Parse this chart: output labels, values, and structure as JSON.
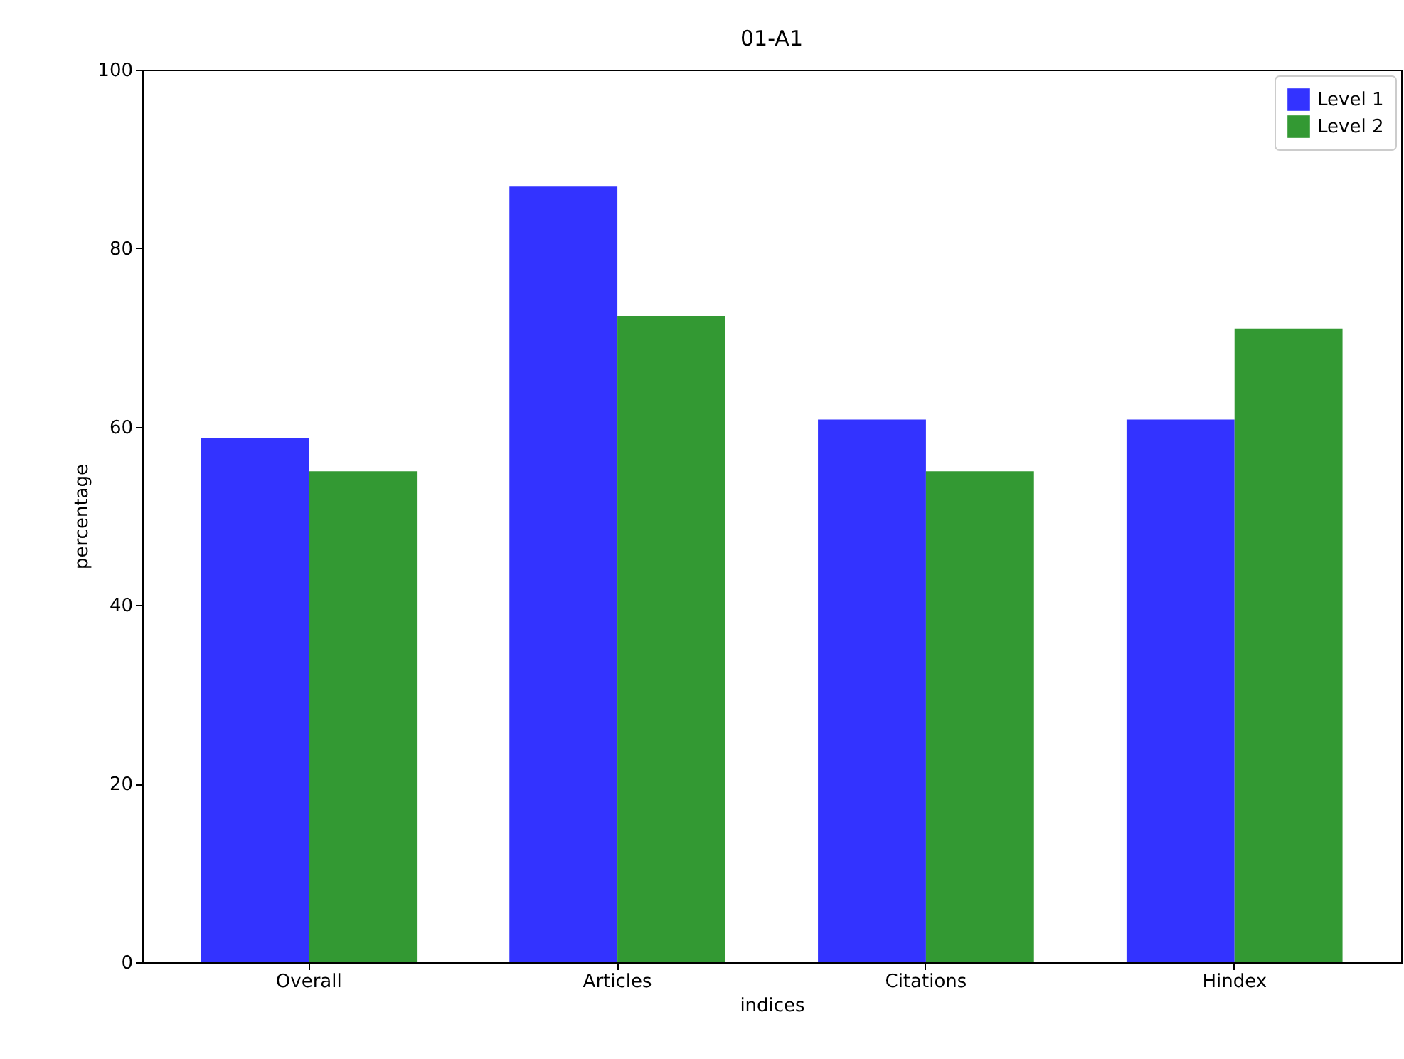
{
  "chart_data": {
    "type": "bar",
    "title": "01-A1",
    "xlabel": "indices",
    "ylabel": "percentage",
    "categories": [
      "Overall",
      "Articles",
      "Citations",
      "Hindex"
    ],
    "series": [
      {
        "name": "Level 1",
        "color": "#3333ff",
        "values": [
          58.7,
          86.9,
          60.8,
          60.8
        ]
      },
      {
        "name": "Level 2",
        "color": "#339933",
        "values": [
          55.0,
          72.4,
          55.0,
          71.0
        ]
      }
    ],
    "ylim": [
      0,
      100
    ],
    "yticks": [
      0,
      20,
      40,
      60,
      80,
      100
    ],
    "grid": false,
    "legend": "top right"
  }
}
